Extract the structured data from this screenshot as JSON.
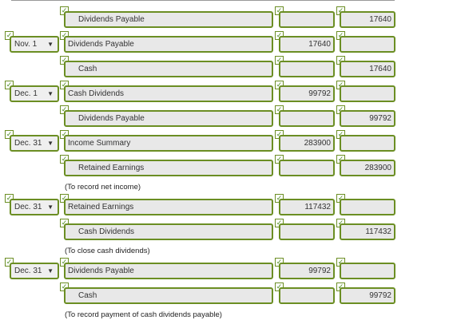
{
  "check_glyph": "✓",
  "accent_color": "#6b8e23",
  "dropdown_arrow": "▼",
  "rows": [
    {
      "date": "",
      "account": "Dividends Payable",
      "debit": "",
      "credit": "17640"
    },
    {
      "date": "Nov. 1",
      "account": "Dividends Payable",
      "debit": "17640",
      "credit": ""
    },
    {
      "date": "",
      "account": "Cash",
      "debit": "",
      "credit": "17640"
    },
    {
      "date": "Dec. 1",
      "account": "Cash Dividends",
      "debit": "99792",
      "credit": ""
    },
    {
      "date": "",
      "account": "Dividends Payable",
      "debit": "",
      "credit": "99792"
    },
    {
      "date": "Dec. 31",
      "account": "Income Summary",
      "debit": "283900",
      "credit": ""
    },
    {
      "date": "",
      "account": "Retained Earnings",
      "debit": "",
      "credit": "283900"
    },
    {
      "date": "Dec. 31",
      "account": "Retained Earnings",
      "debit": "117432",
      "credit": ""
    },
    {
      "date": "",
      "account": "Cash Dividends",
      "debit": "",
      "credit": "117432"
    },
    {
      "date": "Dec. 31",
      "account": "Dividends Payable",
      "debit": "99792",
      "credit": ""
    },
    {
      "date": "",
      "account": "Cash",
      "debit": "",
      "credit": "99792"
    }
  ],
  "notes": [
    "(To record net income)",
    "(To close cash dividends)",
    "(To record payment of cash dividends payable)"
  ]
}
